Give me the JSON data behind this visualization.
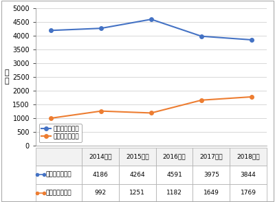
{
  "years": [
    "2014年度",
    "2015年度",
    "2016年度",
    "2017年度",
    "2018年度"
  ],
  "barium": [
    4186,
    4264,
    4591,
    3975,
    3844
  ],
  "endoscopy": [
    992,
    1251,
    1182,
    1649,
    1769
  ],
  "barium_color": "#4472c4",
  "endoscopy_color": "#ed7d31",
  "ylabel": "件\n数",
  "ylim": [
    0,
    5000
  ],
  "yticks": [
    0,
    500,
    1000,
    1500,
    2000,
    2500,
    3000,
    3500,
    4000,
    4500,
    5000
  ],
  "legend_barium": "胃バリウム検査",
  "legend_endoscopy": "上部内視鏡検査",
  "bg_color": "#ffffff",
  "grid_color": "#c8c8c8",
  "border_color": "#aaaaaa",
  "table_header_bg": "#f2f2f2",
  "table_cell_bg": "#ffffff",
  "table_edge_color": "#aaaaaa",
  "marker_size": 4,
  "line_width": 1.5,
  "ytick_fontsize": 7,
  "legend_fontsize": 6.5,
  "table_fontsize": 6.5
}
